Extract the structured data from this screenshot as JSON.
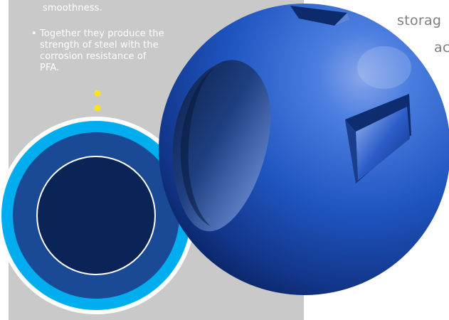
{
  "panel": {
    "lead_line": "smoothness.",
    "bullet_marker": "•",
    "bullet_text": "Together they produce the strength of steel with the corrosion resistance of PFA."
  },
  "side_text": {
    "line1": "storag",
    "line2": "ac"
  },
  "colors": {
    "panel_gray": "#c9c9c9",
    "ring_cyan": "#00aeef",
    "ring_mid_blue": "#1a4a95",
    "core_navy": "#0a2457",
    "ball_blue": "#1f57c2",
    "dots_yellow": "#ffe21a"
  },
  "illustration": {
    "name": "ball-valve-ball"
  }
}
